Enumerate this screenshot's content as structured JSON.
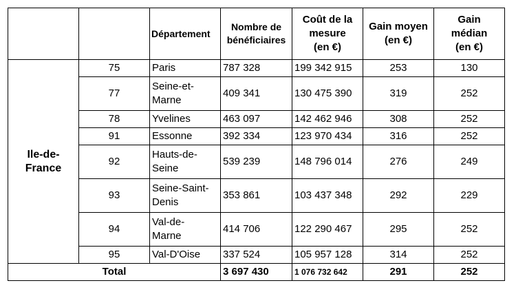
{
  "headers": {
    "departement": "Département",
    "beneficiaires": [
      "Nombre de",
      "bénéficiaires"
    ],
    "cout": [
      "Coût de la",
      "mesure",
      "(en €)"
    ],
    "gain_moyen": [
      "Gain moyen",
      "(en €)"
    ],
    "gain_median": [
      "Gain",
      "médian",
      "(en €)"
    ]
  },
  "region": [
    "Ile-de-",
    "France"
  ],
  "rows": [
    {
      "code": "75",
      "name": [
        "Paris"
      ],
      "beneficiaires": "787 328",
      "cout": "199 342 915",
      "gain_moyen": "253",
      "gain_median": "130"
    },
    {
      "code": "77",
      "name": [
        "Seine-et-",
        "Marne"
      ],
      "beneficiaires": "409 341",
      "cout": "130 475 390",
      "gain_moyen": "319",
      "gain_median": "252"
    },
    {
      "code": "78",
      "name": [
        "Yvelines"
      ],
      "beneficiaires": "463 097",
      "cout": "142 462 946",
      "gain_moyen": "308",
      "gain_median": "252"
    },
    {
      "code": "91",
      "name": [
        "Essonne"
      ],
      "beneficiaires": "392 334",
      "cout": "123 970 434",
      "gain_moyen": "316",
      "gain_median": "252"
    },
    {
      "code": "92",
      "name": [
        "Hauts-de-",
        "Seine"
      ],
      "beneficiaires": "539 239",
      "cout": "148 796 014",
      "gain_moyen": "276",
      "gain_median": "249"
    },
    {
      "code": "93",
      "name": [
        "Seine-Saint-",
        "Denis"
      ],
      "beneficiaires": "353 861",
      "cout": "103 437 348",
      "gain_moyen": "292",
      "gain_median": "229"
    },
    {
      "code": "94",
      "name": [
        "Val-de-",
        "Marne"
      ],
      "beneficiaires": "414 706",
      "cout": "122 290 467",
      "gain_moyen": "295",
      "gain_median": "252"
    },
    {
      "code": "95",
      "name": [
        "Val-D'Oise"
      ],
      "beneficiaires": "337 524",
      "cout": "105 957 128",
      "gain_moyen": "314",
      "gain_median": "252"
    }
  ],
  "total": {
    "label": "Total",
    "beneficiaires": "3 697 430",
    "cout": "1 076 732 642",
    "gain_moyen": "291",
    "gain_median": "252"
  }
}
